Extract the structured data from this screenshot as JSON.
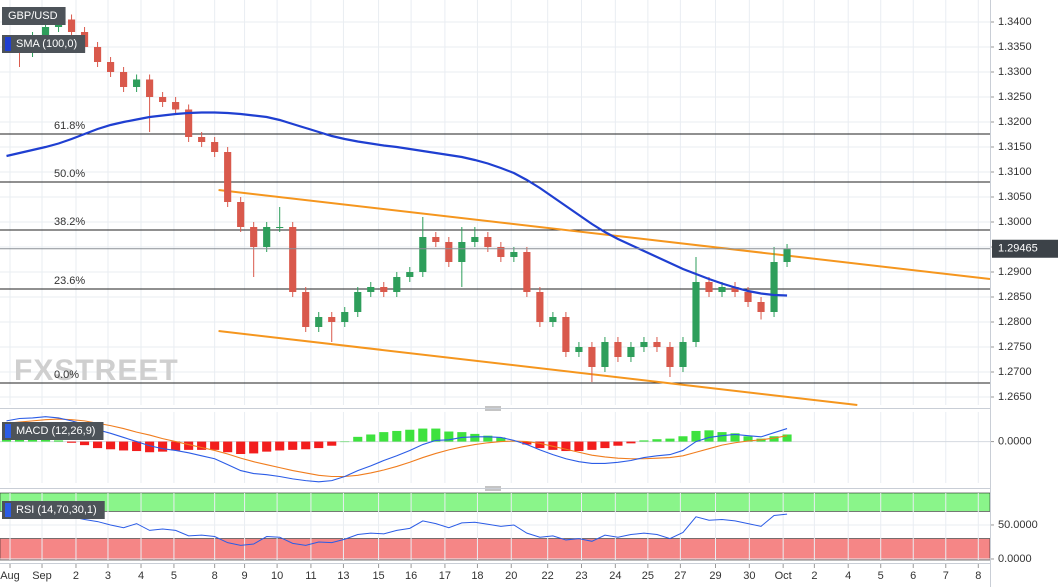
{
  "chart_data": [
    {
      "type": "candlestick",
      "title": "GBP/USD",
      "watermark": "FXSTREET",
      "xlim": [
        -0.5,
        75.6
      ],
      "ylim": [
        1.2634,
        1.3444
      ],
      "yticks": [
        {
          "value": 1.34,
          "label": "1.3400"
        },
        {
          "value": 1.335,
          "label": "1.3350"
        },
        {
          "value": 1.33,
          "label": "1.3300"
        },
        {
          "value": 1.325,
          "label": "1.3250"
        },
        {
          "value": 1.32,
          "label": "1.3200"
        },
        {
          "value": 1.315,
          "label": "1.3150"
        },
        {
          "value": 1.31,
          "label": "1.3100"
        },
        {
          "value": 1.305,
          "label": "1.3050"
        },
        {
          "value": 1.3,
          "label": "1.3000"
        },
        {
          "value": 1.295,
          "label": "1.2950"
        },
        {
          "value": 1.29,
          "label": "1.2900"
        },
        {
          "value": 1.285,
          "label": "1.2850"
        },
        {
          "value": 1.28,
          "label": "1.2800"
        },
        {
          "value": 1.275,
          "label": "1.2750"
        },
        {
          "value": 1.27,
          "label": "1.2700"
        },
        {
          "value": 1.265,
          "label": "1.2650"
        }
      ],
      "grid": true,
      "up_color": "#2e9e5b",
      "down_color": "#d9594c",
      "open": [
        1.335,
        1.336,
        1.334,
        1.337,
        1.339,
        1.3405,
        1.338,
        1.335,
        1.332,
        1.33,
        1.327,
        1.3285,
        1.325,
        1.324,
        1.3225,
        1.317,
        1.316,
        1.314,
        1.304,
        1.299,
        1.295,
        1.299,
        1.299,
        1.286,
        1.279,
        1.281,
        1.28,
        1.282,
        1.286,
        1.287,
        1.286,
        1.289,
        1.29,
        1.297,
        1.296,
        1.292,
        1.296,
        1.297,
        1.295,
        1.293,
        1.294,
        1.286,
        1.28,
        1.281,
        1.274,
        1.275,
        1.271,
        1.276,
        1.273,
        1.275,
        1.276,
        1.275,
        1.271,
        1.276,
        1.288,
        1.286,
        1.287,
        1.286,
        1.284,
        1.282,
        1.292
      ],
      "high": [
        1.337,
        1.337,
        1.338,
        1.34,
        1.3415,
        1.3415,
        1.339,
        1.336,
        1.333,
        1.331,
        1.3295,
        1.3295,
        1.326,
        1.325,
        1.3235,
        1.318,
        1.317,
        1.315,
        1.305,
        1.3,
        1.3,
        1.303,
        1.3,
        1.287,
        1.282,
        1.282,
        1.283,
        1.287,
        1.288,
        1.288,
        1.29,
        1.291,
        1.301,
        1.298,
        1.297,
        1.299,
        1.299,
        1.298,
        1.296,
        1.295,
        1.295,
        1.287,
        1.282,
        1.282,
        1.276,
        1.276,
        1.277,
        1.277,
        1.276,
        1.277,
        1.277,
        1.276,
        1.277,
        1.293,
        1.289,
        1.288,
        1.288,
        1.287,
        1.285,
        1.295,
        1.2956
      ],
      "low": [
        1.334,
        1.331,
        1.333,
        1.336,
        1.338,
        1.337,
        1.334,
        1.331,
        1.329,
        1.326,
        1.326,
        1.318,
        1.323,
        1.3215,
        1.316,
        1.315,
        1.313,
        1.303,
        1.298,
        1.289,
        1.294,
        1.298,
        1.285,
        1.278,
        1.278,
        1.276,
        1.279,
        1.281,
        1.285,
        1.285,
        1.285,
        1.288,
        1.289,
        1.295,
        1.291,
        1.287,
        1.295,
        1.294,
        1.292,
        1.292,
        1.285,
        1.279,
        1.279,
        1.273,
        1.273,
        1.268,
        1.27,
        1.272,
        1.272,
        1.274,
        1.274,
        1.269,
        1.27,
        1.275,
        1.285,
        1.285,
        1.285,
        1.283,
        1.2805,
        1.281,
        1.291
      ],
      "close": [
        1.336,
        1.334,
        1.337,
        1.339,
        1.3405,
        1.338,
        1.335,
        1.332,
        1.33,
        1.327,
        1.3285,
        1.325,
        1.324,
        1.3225,
        1.317,
        1.316,
        1.314,
        1.304,
        1.299,
        1.295,
        1.299,
        1.299,
        1.286,
        1.279,
        1.281,
        1.28,
        1.282,
        1.286,
        1.287,
        1.286,
        1.289,
        1.29,
        1.297,
        1.296,
        1.292,
        1.296,
        1.297,
        1.295,
        1.293,
        1.294,
        1.286,
        1.28,
        1.281,
        1.274,
        1.275,
        1.271,
        1.276,
        1.273,
        1.275,
        1.276,
        1.275,
        1.271,
        1.276,
        1.288,
        1.286,
        1.287,
        1.286,
        1.284,
        1.282,
        1.292,
        1.2946
      ],
      "series": [
        {
          "name": "SMA (100,0)",
          "color": "#1f3fd1",
          "values": [
            1.3132,
            1.3138,
            1.3144,
            1.315,
            1.3157,
            1.3166,
            1.3176,
            1.3186,
            1.3194,
            1.32,
            1.3205,
            1.321,
            1.3213,
            1.3216,
            1.3218,
            1.3219,
            1.3219,
            1.3218,
            1.3216,
            1.3213,
            1.321,
            1.3204,
            1.3196,
            1.3188,
            1.318,
            1.3172,
            1.3166,
            1.3161,
            1.3157,
            1.3153,
            1.315,
            1.3146,
            1.3142,
            1.3138,
            1.3134,
            1.313,
            1.3124,
            1.3117,
            1.3108,
            1.3098,
            1.3084,
            1.3068,
            1.305,
            1.3032,
            1.3014,
            1.2996,
            1.298,
            1.2966,
            1.2954,
            1.2942,
            1.293,
            1.2918,
            1.2906,
            1.2896,
            1.2886,
            1.2877,
            1.2869,
            1.2862,
            1.2857,
            1.2854,
            1.2853
          ]
        }
      ],
      "fibonacci": [
        {
          "label": "61.8%",
          "value": 1.3176
        },
        {
          "label": "50.0%",
          "value": 1.308
        },
        {
          "label": "38.2%",
          "value": 1.2984
        },
        {
          "label": "23.6%",
          "value": 1.2866
        },
        {
          "label": "0.0%",
          "value": 1.2678
        }
      ],
      "trendlines": [
        {
          "color": "#f5961e",
          "x": [
            16.3,
            75.6
          ],
          "y": [
            1.3064,
            1.2886
          ]
        },
        {
          "color": "#f5961e",
          "x": [
            16.3,
            65.4
          ],
          "y": [
            1.2782,
            1.2634
          ]
        }
      ],
      "last_price": 1.29465
    },
    {
      "type": "macd",
      "title": "MACD (12,26,9)",
      "xlim": [
        -0.5,
        75.6
      ],
      "ylim": [
        -0.007,
        0.005
      ],
      "yticks": [
        {
          "value": 0,
          "label": "0.0000"
        }
      ],
      "grid": true,
      "macd_color": "#2b5ce6",
      "signal_color": "#f07d1e",
      "up_color": "#3ee23e",
      "down_color": "#f21d1d",
      "macd": [
        0.0035,
        0.0039,
        0.004,
        0.0042,
        0.004,
        0.0035,
        0.0029,
        0.002,
        0.0014,
        0.0007,
        0,
        -0.0007,
        -0.0012,
        -0.0015,
        -0.0019,
        -0.0024,
        -0.0029,
        -0.0039,
        -0.0049,
        -0.0054,
        -0.0056,
        -0.0059,
        -0.0063,
        -0.0066,
        -0.0068,
        -0.0066,
        -0.0059,
        -0.0049,
        -0.0041,
        -0.0032,
        -0.0024,
        -0.0015,
        -0.0005,
        0.0002,
        0.0003,
        0.0007,
        0.0008,
        0.0008,
        0.0007,
        0.0002,
        -0.0005,
        -0.0014,
        -0.0022,
        -0.0029,
        -0.0034,
        -0.0037,
        -0.0037,
        -0.0035,
        -0.0032,
        -0.0027,
        -0.0024,
        -0.0022,
        -0.0015,
        0,
        0.0007,
        0.001,
        0.0012,
        0.001,
        0.0008,
        0.0015,
        0.0022
      ],
      "signal": [
        0.0031,
        0.0033,
        0.0035,
        0.0037,
        0.0038,
        0.0037,
        0.0035,
        0.0031,
        0.0027,
        0.0022,
        0.0016,
        0.0011,
        0.0005,
        0,
        -0.0005,
        -0.001,
        -0.0015,
        -0.0021,
        -0.0028,
        -0.0034,
        -0.0039,
        -0.0044,
        -0.0049,
        -0.0053,
        -0.0057,
        -0.0059,
        -0.0059,
        -0.0057,
        -0.0053,
        -0.0048,
        -0.0042,
        -0.0035,
        -0.0027,
        -0.002,
        -0.0014,
        -0.0009,
        -0.0005,
        -0.0002,
        0,
        0.0001,
        0,
        -0.0003,
        -0.0008,
        -0.0013,
        -0.0018,
        -0.0023,
        -0.0026,
        -0.0028,
        -0.0029,
        -0.0029,
        -0.0028,
        -0.0027,
        -0.0024,
        -0.0018,
        -0.0012,
        -0.0006,
        -0.0002,
        0.0001,
        0.0003,
        0.0006,
        0.001
      ],
      "histogram": [
        0.0004,
        0.0006,
        0.0005,
        0.0005,
        0.0002,
        -0.0002,
        -0.0006,
        -0.0011,
        -0.0013,
        -0.0015,
        -0.0016,
        -0.0018,
        -0.0017,
        -0.0015,
        -0.0014,
        -0.0014,
        -0.0014,
        -0.0018,
        -0.0021,
        -0.002,
        -0.0017,
        -0.0015,
        -0.0014,
        -0.0013,
        -0.0011,
        -0.0007,
        0,
        0.0008,
        0.0012,
        0.0016,
        0.0018,
        0.002,
        0.0022,
        0.0022,
        0.0017,
        0.0016,
        0.0013,
        0.001,
        0.0007,
        0.0001,
        -0.0005,
        -0.0011,
        -0.0014,
        -0.0016,
        -0.0016,
        -0.0014,
        -0.0011,
        -0.0007,
        -0.0003,
        0.0002,
        0.0004,
        0.0005,
        0.0009,
        0.0018,
        0.0019,
        0.0016,
        0.0014,
        0.0009,
        0.0005,
        0.0009,
        0.0012
      ]
    },
    {
      "type": "rsi",
      "title": "RSI (14,70,30,1)",
      "xlim": [
        -0.5,
        75.6
      ],
      "ylim": [
        -1.5,
        97
      ],
      "yticks": [
        {
          "value": 50,
          "label": "50.0000"
        },
        {
          "value": 0,
          "label": "0.0000"
        }
      ],
      "grid": true,
      "overbought": 70,
      "oversold": 30,
      "color": "#2b5ce6",
      "overbought_color": "#8af58a",
      "oversold_color": "#f58686",
      "values": [
        66,
        68,
        70,
        71,
        70,
        62,
        58,
        55,
        50,
        46,
        52,
        42,
        44,
        42,
        34,
        35,
        33,
        24,
        20,
        22,
        33,
        32,
        23,
        20,
        25,
        24,
        29,
        36,
        38,
        37,
        42,
        45,
        56,
        52,
        46,
        53,
        54,
        51,
        48,
        50,
        38,
        32,
        34,
        28,
        30,
        26,
        35,
        32,
        36,
        38,
        36,
        30,
        39,
        62,
        57,
        58,
        56,
        52,
        48,
        64,
        66
      ],
      "xticks": [
        {
          "value": 0.27,
          "label": "Aug"
        },
        {
          "value": 2.73,
          "label": "Sep"
        },
        {
          "value": 5.34,
          "label": "2"
        },
        {
          "value": 7.8,
          "label": "3"
        },
        {
          "value": 10.34,
          "label": "4"
        },
        {
          "value": 12.87,
          "label": "5"
        },
        {
          "value": 16.0,
          "label": "8"
        },
        {
          "value": 18.3,
          "label": "9"
        },
        {
          "value": 20.8,
          "label": "10"
        },
        {
          "value": 23.4,
          "label": "11"
        },
        {
          "value": 25.9,
          "label": "13"
        },
        {
          "value": 28.6,
          "label": "15"
        },
        {
          "value": 31.1,
          "label": "16"
        },
        {
          "value": 33.7,
          "label": "17"
        },
        {
          "value": 36.2,
          "label": "18"
        },
        {
          "value": 38.8,
          "label": "20"
        },
        {
          "value": 41.6,
          "label": "22"
        },
        {
          "value": 44.2,
          "label": "23"
        },
        {
          "value": 46.8,
          "label": "24"
        },
        {
          "value": 49.3,
          "label": "25"
        },
        {
          "value": 51.8,
          "label": "27"
        },
        {
          "value": 54.5,
          "label": "29"
        },
        {
          "value": 57.1,
          "label": "30"
        },
        {
          "value": 59.7,
          "label": "Oct"
        },
        {
          "value": 62.1,
          "label": "2"
        },
        {
          "value": 64.7,
          "label": "4"
        },
        {
          "value": 67.2,
          "label": "5"
        },
        {
          "value": 69.7,
          "label": "6"
        },
        {
          "value": 72.2,
          "label": "7"
        },
        {
          "value": 74.7,
          "label": "8"
        }
      ]
    }
  ]
}
